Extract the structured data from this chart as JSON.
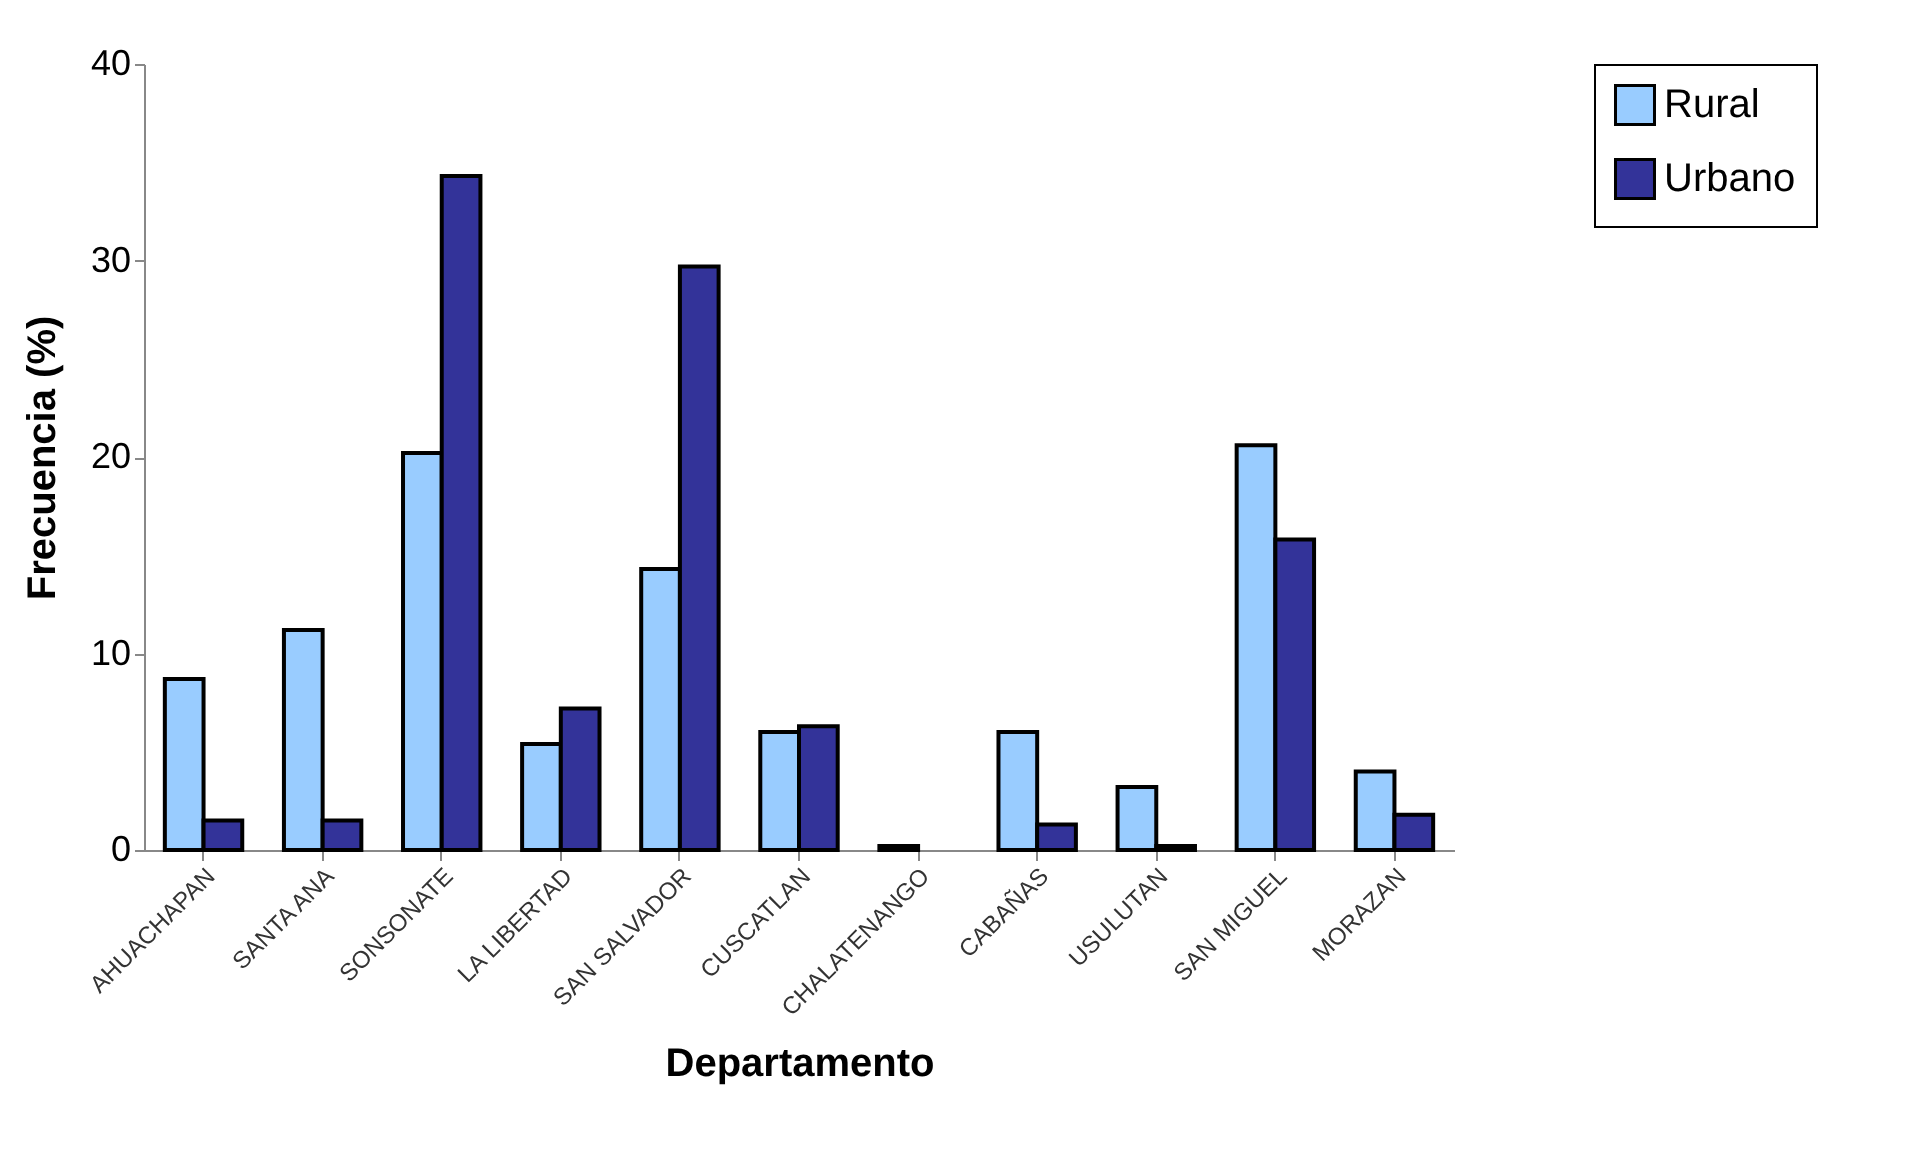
{
  "chart_data": {
    "type": "bar",
    "xlabel": "Departamento",
    "ylabel": "Frecuencia (%)",
    "categories": [
      "AHUACHAPAN",
      "SANTA ANA",
      "SONSONATE",
      "LA LIBERTAD",
      "SAN SALVADOR",
      "CUSCATLAN",
      "CHALATENANGO",
      "CABAÑAS",
      "USULUTAN",
      "SAN MIGUEL",
      "MORAZAN"
    ],
    "series": [
      {
        "name": "Rural",
        "color": "#99ccff",
        "values": [
          8.7,
          11.2,
          20.2,
          5.4,
          14.3,
          6.0,
          0.2,
          6.0,
          3.2,
          20.6,
          4.0
        ]
      },
      {
        "name": "Urbano",
        "color": "#333399",
        "values": [
          1.5,
          1.5,
          34.3,
          7.2,
          29.7,
          6.3,
          null,
          1.3,
          0.2,
          15.8,
          1.8
        ]
      }
    ],
    "ylim": [
      0,
      40
    ],
    "yticks": [
      0,
      10,
      20,
      30,
      40
    ],
    "grid": false,
    "legend": "right"
  }
}
